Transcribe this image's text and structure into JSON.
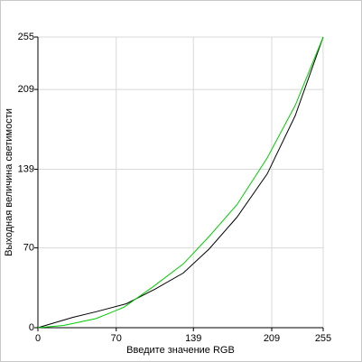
{
  "chart_data": {
    "type": "line",
    "x_label": "Введите значение RGB",
    "y_label": "Выходная величина светимости",
    "series": [
      {
        "color": "#000000",
        "x": [
          0,
          31,
          52,
          79,
          105,
          130,
          153,
          178,
          205,
          230,
          255
        ],
        "values": [
          0,
          9,
          14,
          21,
          34,
          48,
          69,
          97,
          135,
          186,
          255
        ]
      },
      {
        "color": "#00cc00",
        "x": [
          0,
          23,
          52,
          77,
          103,
          130,
          153,
          178,
          205,
          230,
          255
        ],
        "values": [
          0,
          2,
          8,
          18,
          36,
          56,
          80,
          108,
          149,
          195,
          255
        ]
      }
    ],
    "xlim": [
      0,
      255
    ],
    "ylim": [
      0,
      255
    ],
    "xticks": [
      0,
      70,
      139,
      209,
      255
    ],
    "yticks": [
      0,
      70,
      139,
      209,
      255
    ],
    "grid": true
  }
}
